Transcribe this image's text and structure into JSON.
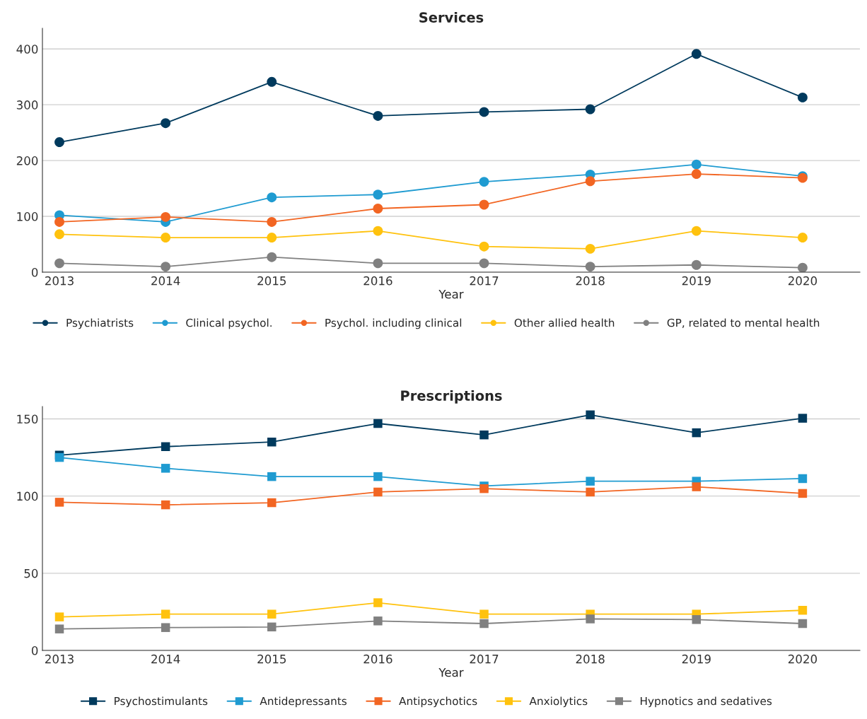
{
  "chart_data": [
    {
      "type": "line",
      "title": "Services",
      "xlabel": "Year",
      "x": [
        2013,
        2014,
        2015,
        2016,
        2017,
        2018,
        2019,
        2020
      ],
      "xlim": [
        2012.84,
        2020.54
      ],
      "xticks": [
        2013,
        2014,
        2015,
        2016,
        2017,
        2018,
        2019,
        2020
      ],
      "ylim": [
        0,
        437
      ],
      "yticks": [
        0,
        100,
        200,
        300,
        400
      ],
      "grid": "y",
      "legend": "bottom",
      "marker": "circle",
      "series": [
        {
          "name": "Psychiatrists",
          "color": "#003a5d",
          "values": [
            233,
            267,
            341,
            280,
            287,
            292,
            391,
            313
          ]
        },
        {
          "name": "Clinical psychol.",
          "color": "#1f9bd1",
          "values": [
            102,
            90,
            134,
            139,
            162,
            175,
            193,
            172
          ]
        },
        {
          "name": "Psychol. including clinical",
          "color": "#f26522",
          "values": [
            90,
            99,
            90,
            114,
            121,
            163,
            176,
            169
          ]
        },
        {
          "name": "Other allied health",
          "color": "#ffc20e",
          "values": [
            68,
            62,
            62,
            74,
            46,
            42,
            74,
            62
          ]
        },
        {
          "name": "GP, related to mental health",
          "color": "#808080",
          "values": [
            16,
            10,
            27,
            16,
            16,
            10,
            13,
            8
          ]
        }
      ]
    },
    {
      "type": "line",
      "title": "Prescriptions",
      "xlabel": "Year",
      "x": [
        2013,
        2014,
        2015,
        2016,
        2017,
        2018,
        2019,
        2020
      ],
      "xlim": [
        2012.84,
        2020.54
      ],
      "xticks": [
        2013,
        2014,
        2015,
        2016,
        2017,
        2018,
        2019,
        2020
      ],
      "ylim": [
        0,
        158
      ],
      "yticks": [
        0,
        50,
        100,
        150
      ],
      "grid": "y",
      "legend": "bottom",
      "marker": "square",
      "series": [
        {
          "name": "Psychostimulants",
          "color": "#003a5d",
          "values": [
            126.5,
            132,
            135,
            147,
            139.6,
            152.6,
            141,
            150.4
          ]
        },
        {
          "name": "Antidepressants",
          "color": "#1f9bd1",
          "values": [
            125,
            118,
            112.6,
            112.6,
            106.5,
            109.6,
            109.6,
            111.3
          ]
        },
        {
          "name": "Antipsychotics",
          "color": "#f26522",
          "values": [
            96,
            94.3,
            95.7,
            102.6,
            104.8,
            102.6,
            106,
            101.7
          ]
        },
        {
          "name": "Anxiolytics",
          "color": "#ffc20e",
          "values": [
            21.7,
            23.5,
            23.5,
            30.9,
            23.5,
            23.5,
            23.5,
            26
          ]
        },
        {
          "name": "Hypnotics and sedatives",
          "color": "#808080",
          "values": [
            13.9,
            14.8,
            15.2,
            19.1,
            17.4,
            20.4,
            20,
            17.4
          ]
        }
      ]
    }
  ]
}
